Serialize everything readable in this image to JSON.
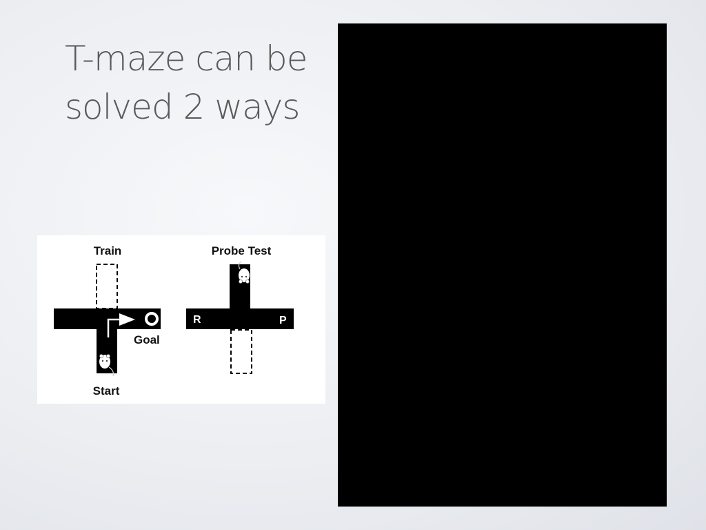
{
  "slide": {
    "title_lines": [
      "T-maze can be",
      "solved 2 ways"
    ]
  },
  "figure": {
    "train": {
      "heading": "Train",
      "goal_label": "Goal",
      "start_label": "Start"
    },
    "probe": {
      "heading": "Probe Test",
      "left_arm": "R",
      "right_arm": "P"
    }
  },
  "colors": {
    "maze": "#000000",
    "title": "#5a5a5a",
    "video_panel": "#000000"
  }
}
